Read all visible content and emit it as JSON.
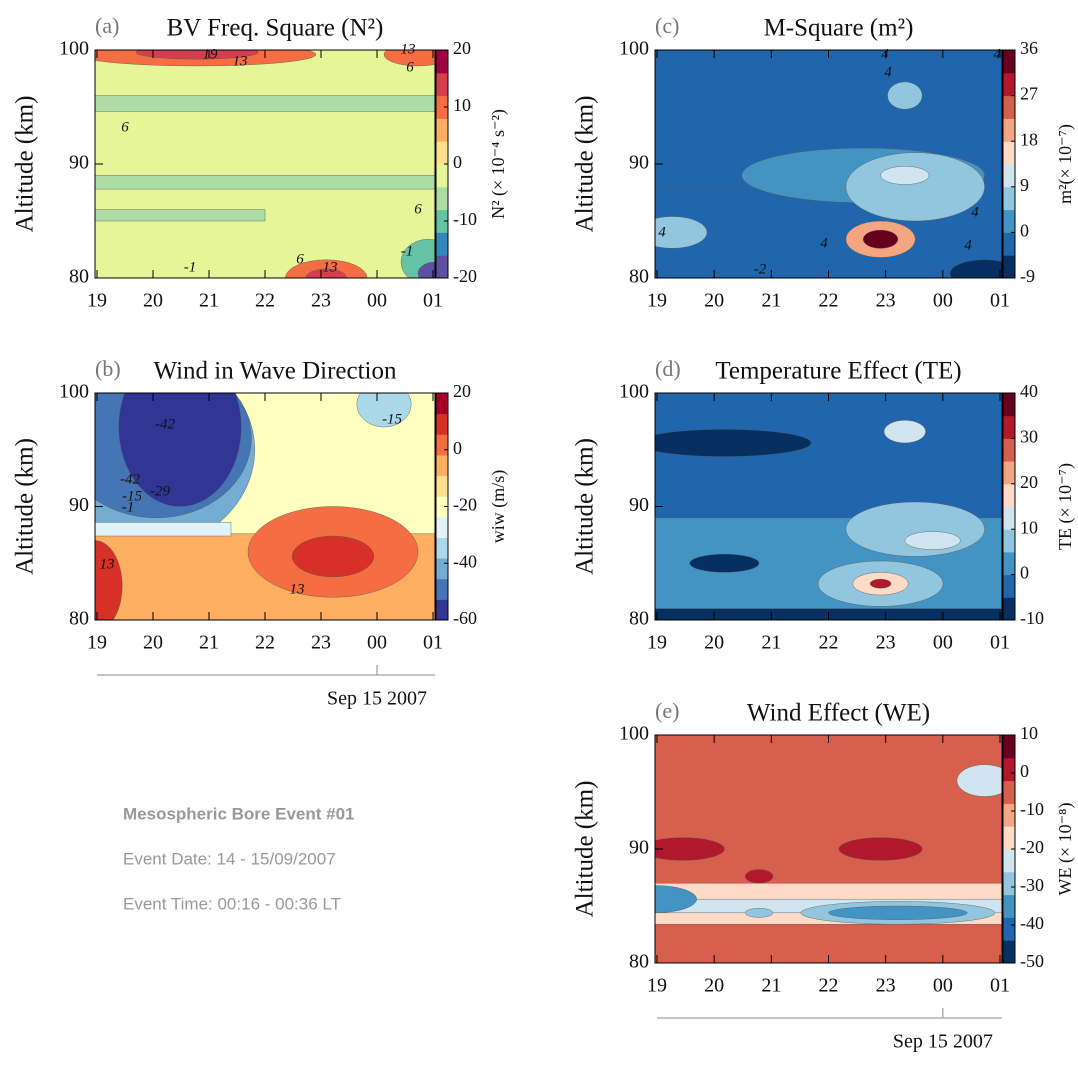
{
  "chart_data": [
    {
      "type": "contour",
      "panel": "(a)",
      "title": "BV Freq. Square (N²)",
      "ylabel": "Altitude (km)",
      "categories": [
        "19",
        "20",
        "21",
        "22",
        "23",
        "00",
        "01"
      ],
      "ylim": [
        80,
        100
      ],
      "yticks": [
        80,
        90,
        100
      ],
      "clim": [
        -20,
        20
      ],
      "cticks": [
        20,
        10,
        0,
        -10,
        -20
      ],
      "clabel": "N² (× 10⁻⁴ s⁻²)",
      "colors": [
        "#5e4fa2",
        "#3288bd",
        "#66c2a5",
        "#abdda4",
        "#e6f598",
        "#fee08b",
        "#fdae61",
        "#f46d43",
        "#d53e4f",
        "#9e0142"
      ],
      "contour_labels": [
        19,
        13,
        13,
        6,
        6,
        6,
        6,
        13,
        -1,
        -1
      ]
    },
    {
      "type": "contour",
      "panel": "(b)",
      "title": "Wind in Wave Direction",
      "ylabel": "Altitude (km)",
      "categories": [
        "19",
        "20",
        "21",
        "22",
        "23",
        "00",
        "01"
      ],
      "ylim": [
        80,
        100
      ],
      "yticks": [
        80,
        90,
        100
      ],
      "clim": [
        -60,
        20
      ],
      "cticks": [
        20,
        0,
        -20,
        -40,
        -60
      ],
      "clabel": "wiw (m/s)",
      "date_label": "Sep 15 2007",
      "colors": [
        "#313695",
        "#4575b4",
        "#74add1",
        "#abd9e9",
        "#e0f3f8",
        "#ffffbf",
        "#fee090",
        "#fdae61",
        "#f46d43",
        "#d73027",
        "#a50026"
      ],
      "contour_labels": [
        -42,
        -15,
        -42,
        -29,
        -15,
        -1,
        13,
        13
      ]
    },
    {
      "type": "contour",
      "panel": "(c)",
      "title": "M-Square (m²)",
      "ylabel": "Altitude (km)",
      "categories": [
        "19",
        "20",
        "21",
        "22",
        "23",
        "00",
        "01"
      ],
      "ylim": [
        80,
        100
      ],
      "yticks": [
        80,
        90,
        100
      ],
      "clim": [
        -9,
        36
      ],
      "cticks": [
        36,
        27,
        18,
        9,
        0,
        -9
      ],
      "clabel": "m²(× 10⁻⁷)",
      "colors": [
        "#053061",
        "#2166ac",
        "#4393c3",
        "#92c5de",
        "#d1e5f0",
        "#fddbc7",
        "#f4a582",
        "#d6604d",
        "#b2182b",
        "#67001f"
      ],
      "contour_labels": [
        4,
        4,
        4,
        4,
        4,
        4,
        4,
        -2
      ]
    },
    {
      "type": "contour",
      "panel": "(d)",
      "title": "Temperature Effect (TE)",
      "ylabel": "Altitude (km)",
      "categories": [
        "19",
        "20",
        "21",
        "22",
        "23",
        "00",
        "01"
      ],
      "ylim": [
        80,
        100
      ],
      "yticks": [
        80,
        90,
        100
      ],
      "clim": [
        -10,
        40
      ],
      "cticks": [
        40,
        30,
        20,
        10,
        0,
        -10
      ],
      "clabel": "TE (× 10⁻⁷)",
      "colors": [
        "#053061",
        "#2166ac",
        "#4393c3",
        "#92c5de",
        "#d1e5f0",
        "#fddbc7",
        "#f4a582",
        "#d6604d",
        "#b2182b",
        "#67001f"
      ],
      "contour_labels": []
    },
    {
      "type": "contour",
      "panel": "(e)",
      "title": "Wind Effect (WE)",
      "ylabel": "Altitude (km)",
      "categories": [
        "19",
        "20",
        "21",
        "22",
        "23",
        "00",
        "01"
      ],
      "ylim": [
        80,
        100
      ],
      "yticks": [
        80,
        90,
        100
      ],
      "clim": [
        -50,
        10
      ],
      "cticks": [
        10,
        0,
        -10,
        -20,
        -30,
        -40,
        -50
      ],
      "clabel": "WE (× 10⁻⁸)",
      "date_label": "Sep 15 2007",
      "colors": [
        "#053061",
        "#2166ac",
        "#4393c3",
        "#92c5de",
        "#d1e5f0",
        "#fddbc7",
        "#f4a582",
        "#d6604d",
        "#b2182b",
        "#67001f"
      ],
      "contour_labels": []
    }
  ],
  "event": {
    "title": "Mesospheric Bore Event #01",
    "date": "Event Date: 14 - 15/09/2007",
    "time": "Event Time: 00:16 - 00:36 LT"
  }
}
